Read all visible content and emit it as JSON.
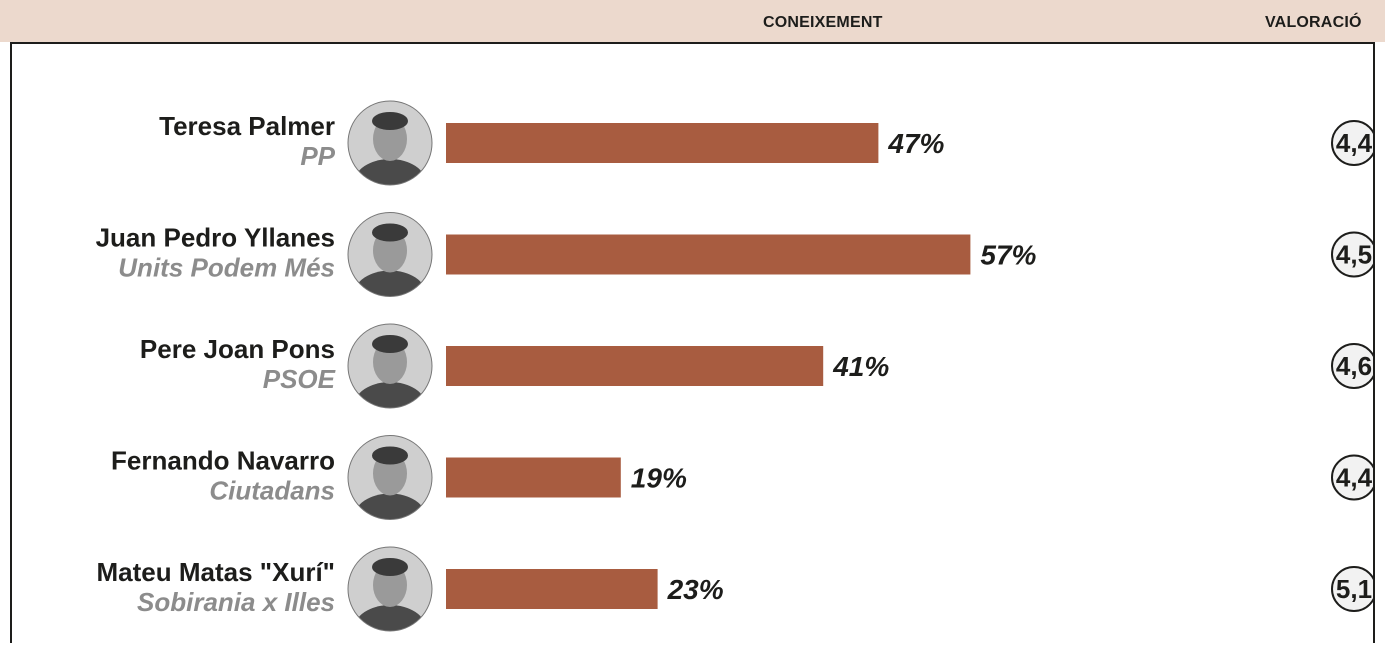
{
  "header": {
    "knowledge_label": "CONEIXEMENT",
    "rating_label": "VALORACIÓ"
  },
  "colors": {
    "header_bg": "#ecd9cd",
    "bar": "#a85c40",
    "party_text": "#8c8c8c",
    "rating_circle_bg": "#f2f2f2"
  },
  "chart_data": {
    "type": "bar",
    "orientation": "horizontal",
    "categories": [
      "Teresa Palmer",
      "Juan Pedro Yllanes",
      "Pere Joan Pons",
      "Fernando Navarro",
      "Mateu Matas \"Xurí\""
    ],
    "parties": [
      "PP",
      "Units Podem Més",
      "PSOE",
      "Ciutadans",
      "Sobirania x Illes"
    ],
    "series": [
      {
        "name": "CONEIXEMENT",
        "values": [
          47,
          57,
          41,
          19,
          23
        ],
        "labels": [
          "47%",
          "57%",
          "41%",
          "19%",
          "23%"
        ]
      },
      {
        "name": "VALORACIÓ",
        "values": [
          4.4,
          4.5,
          4.6,
          4.4,
          5.1
        ],
        "labels": [
          "4,4",
          "4,5",
          "4,6",
          "4,4",
          "5,1"
        ]
      }
    ],
    "xlim": [
      0,
      100
    ],
    "grid": false,
    "icons": [
      "candidate-photo-icon"
    ]
  }
}
